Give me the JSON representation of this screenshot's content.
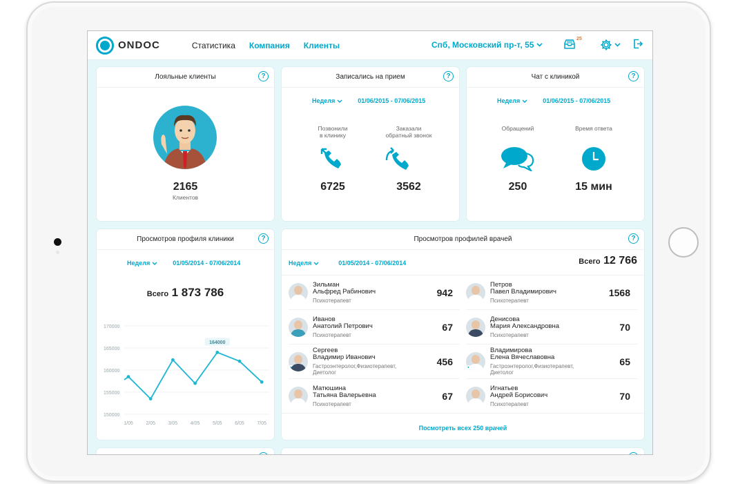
{
  "app": {
    "logo": "ONDOC"
  },
  "nav": [
    {
      "label": "Статистика",
      "active": true
    },
    {
      "label": "Компания",
      "active": false
    },
    {
      "label": "Клиенты",
      "active": false
    }
  ],
  "header": {
    "address": "Спб, Московский пр-т, 55",
    "notification_count": "25"
  },
  "loyal": {
    "title": "Лояльные клиенты",
    "value": "2165",
    "caption": "Клиентов"
  },
  "appointments": {
    "title": "Записались на прием",
    "period": "Неделя",
    "range": "01/06/2015 - 07/06/2015",
    "called_label": "Позвонили\nв клинику",
    "called_value": "6725",
    "callback_label": "Заказали\nобратный звонок",
    "callback_value": "3562"
  },
  "chat": {
    "title": "Чат с клиникой",
    "period": "Неделя",
    "range": "01/06/2015 - 07/06/2015",
    "requests_label": "Обращений",
    "requests_value": "250",
    "response_label": "Время ответа",
    "response_value": "15 мин"
  },
  "profile_views": {
    "title": "Просмотров профиля клиники",
    "period": "Неделя",
    "range": "01/05/2014 - 07/06/2014",
    "total_label": "Всего",
    "total_value": "1 873 786"
  },
  "chart_data": {
    "type": "line",
    "x": [
      "1/05",
      "2/05",
      "3/05",
      "4/05",
      "5/05",
      "6/05",
      "7/05"
    ],
    "series": [
      {
        "values": [
          158500,
          153500,
          162300,
          157000,
          164000,
          162000,
          157300
        ]
      }
    ],
    "extra_x_start": 157800,
    "yticks": [
      "170000",
      "165000",
      "160000",
      "155000",
      "150000"
    ],
    "ylim": [
      150000,
      170000
    ],
    "annotation": "164000",
    "color": "#1fb6d2",
    "grid": true
  },
  "doctors_views": {
    "title": "Просмотров профилей врачей",
    "period": "Неделя",
    "range": "01/05/2014 - 07/06/2014",
    "total_label": "Всего",
    "total_value": "12 766",
    "see_all": "Посмотреть всех 250 врачей",
    "doctors": [
      {
        "surname": "Зильман",
        "name": "Альфред Рабинович",
        "spec1": "Психотерапевт",
        "spec2": "",
        "count": "942",
        "online": false,
        "style": ""
      },
      {
        "surname": "Петров",
        "name": "Павел Владимирович",
        "spec1": "Психотерапевт",
        "spec2": "",
        "count": "1568",
        "online": false,
        "style": ""
      },
      {
        "surname": "Иванов",
        "name": "Анатолий Петрович",
        "spec1": "Психотерапевт",
        "spec2": "",
        "count": "67",
        "online": false,
        "style": "blue"
      },
      {
        "surname": "Денисова",
        "name": "Мария Александровна",
        "spec1": "Психотерапевт",
        "spec2": "",
        "count": "70",
        "online": false,
        "style": "dark"
      },
      {
        "surname": "Сергеев",
        "name": "Владимир Иванович",
        "spec1": "Гастроэнтеролог,Физиотерапевт,",
        "spec2": "Диетолог",
        "count": "456",
        "online": true,
        "style": "dark"
      },
      {
        "surname": "Владимирова",
        "name": "Елена Вячеславовна",
        "spec1": "Гастроэнтеролог,Физиотерапевт,",
        "spec2": "Диетолог",
        "count": "65",
        "online": true,
        "style": ""
      },
      {
        "surname": "Матюшина",
        "name": "Татьяна Валерьевна",
        "spec1": "Психотерапевт",
        "spec2": "",
        "count": "67",
        "online": false,
        "style": ""
      },
      {
        "surname": "Игнатьев",
        "name": "Андрей Борисович",
        "spec1": "Психотерапевт",
        "spec2": "",
        "count": "70",
        "online": false,
        "style": ""
      }
    ]
  }
}
